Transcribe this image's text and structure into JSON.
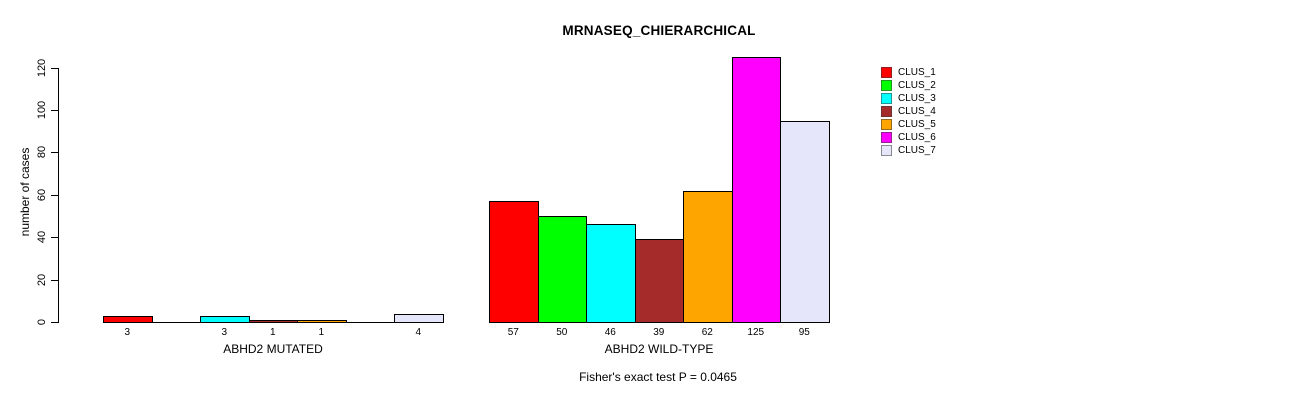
{
  "title": "MRNASEQ_CHIERARCHICAL",
  "chart_data": {
    "type": "bar",
    "title": "MRNASEQ_CHIERARCHICAL",
    "ylabel": "number of cases",
    "xlabel": "",
    "ylim": [
      0,
      125
    ],
    "yticks": [
      0,
      20,
      40,
      60,
      80,
      100,
      120
    ],
    "grid": false,
    "legend_position": "right",
    "legend": [
      {
        "name": "CLUS_1",
        "color": "#ff0000"
      },
      {
        "name": "CLUS_2",
        "color": "#00ff00"
      },
      {
        "name": "CLUS_3",
        "color": "#00ffff"
      },
      {
        "name": "CLUS_4",
        "color": "#a52a2a"
      },
      {
        "name": "CLUS_5",
        "color": "#ffa500"
      },
      {
        "name": "CLUS_6",
        "color": "#ff00ff"
      },
      {
        "name": "CLUS_7",
        "color": "#e6e6fa"
      }
    ],
    "groups": [
      {
        "label": "ABHD2 MUTATED",
        "values": [
          3,
          0,
          3,
          1,
          1,
          0,
          4
        ],
        "bar_labels": [
          "3",
          "",
          "3",
          "1",
          "1",
          "",
          "4"
        ]
      },
      {
        "label": "ABHD2 WILD-TYPE",
        "values": [
          57,
          50,
          46,
          39,
          62,
          125,
          95
        ],
        "bar_labels": [
          "57",
          "50",
          "46",
          "39",
          "62",
          "125",
          "95"
        ]
      }
    ],
    "annotation": "Fisher's exact test P = 0.0465"
  }
}
